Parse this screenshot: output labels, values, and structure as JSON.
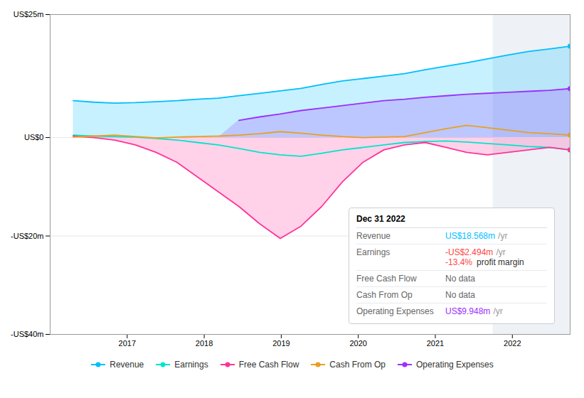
{
  "chart_data": {
    "type": "line",
    "x": [
      2016.3,
      2016.56875,
      2016.8375,
      2017.10625,
      2017.375,
      2017.64375,
      2017.9125,
      2018.18125,
      2018.45,
      2018.71875,
      2018.9875,
      2019.25625,
      2019.525,
      2019.79375,
      2020.0625,
      2020.33125,
      2020.6,
      2020.86875,
      2021.1375,
      2021.40625,
      2021.675,
      2021.94375,
      2022.2125,
      2022.48125,
      2022.75
    ],
    "xlim": [
      2016.0,
      2022.75
    ],
    "xticks": [
      2017,
      2018,
      2019,
      2020,
      2021,
      2022
    ],
    "ylim": [
      -40,
      25
    ],
    "yticks": [
      {
        "value": -40,
        "label": "-US$40m"
      },
      {
        "value": -20,
        "label": "-US$20m"
      },
      {
        "value": 0,
        "label": "US$0"
      },
      {
        "value": 25,
        "label": "US$25m"
      }
    ],
    "grid": "y",
    "legend": "bottom",
    "highlight": [
      2021.75,
      2022.75
    ],
    "series": [
      {
        "name": "Revenue",
        "type": "area",
        "color": "#00bfff",
        "marker": "circle",
        "values": [
          7.5,
          7.2,
          7.0,
          7.1,
          7.3,
          7.5,
          7.8,
          8.0,
          8.5,
          9.0,
          9.5,
          10.0,
          10.8,
          11.5,
          12.0,
          12.5,
          13.0,
          13.8,
          14.5,
          15.2,
          16.0,
          16.8,
          17.5,
          18.0,
          18.568
        ]
      },
      {
        "name": "Earnings",
        "type": "line",
        "color": "#00e5cc",
        "marker": "circle",
        "values": [
          0.5,
          0.3,
          0.2,
          0.1,
          -0.2,
          -0.5,
          -1.0,
          -1.5,
          -2.2,
          -3.0,
          -3.5,
          -3.8,
          -3.2,
          -2.5,
          -2.0,
          -1.5,
          -1.0,
          -0.8,
          -0.7,
          -0.9,
          -1.2,
          -1.5,
          -1.8,
          -2.0,
          -2.494
        ]
      },
      {
        "name": "Free Cash Flow",
        "type": "area",
        "color": "#ff3399",
        "marker": "circle",
        "values": [
          0.3,
          0.0,
          -0.5,
          -1.5,
          -3.0,
          -5.0,
          -8.0,
          -11.0,
          -14.0,
          -17.5,
          -20.5,
          -18.0,
          -14.0,
          -9.0,
          -5.0,
          -2.5,
          -1.5,
          -1.0,
          -2.0,
          -3.0,
          -3.5,
          -3.0,
          -2.5,
          -2.0,
          -2.5
        ]
      },
      {
        "name": "Cash From Op",
        "type": "line",
        "color": "#e8a020",
        "marker": "circle",
        "values": [
          0.1,
          0.3,
          0.5,
          0.2,
          -0.1,
          0.1,
          0.2,
          0.3,
          0.5,
          0.8,
          1.2,
          0.9,
          0.5,
          0.2,
          0.0,
          0.1,
          0.2,
          1.0,
          1.8,
          2.5,
          2.0,
          1.5,
          1.0,
          0.8,
          0.5
        ]
      },
      {
        "name": "Operating Expenses",
        "type": "area",
        "color": "#9b30ff",
        "marker": "circle",
        "values": [
          null,
          null,
          null,
          null,
          null,
          null,
          null,
          null,
          3.5,
          4.2,
          4.8,
          5.5,
          6.0,
          6.5,
          7.0,
          7.5,
          7.8,
          8.2,
          8.5,
          8.8,
          9.0,
          9.2,
          9.4,
          9.6,
          9.948
        ]
      }
    ],
    "annotations": {
      "title": "Dec 31 2022",
      "rows": [
        {
          "label": "Revenue",
          "value": "US$18.568m",
          "unit": "/yr",
          "color": "#00bfff"
        },
        {
          "label": "Earnings",
          "value": "-US$2.494m",
          "unit": "/yr",
          "color": "#ff4444",
          "extra": "-13.4%",
          "extra_label": "profit margin"
        },
        {
          "label": "Free Cash Flow",
          "value": "No data",
          "color": "#666666"
        },
        {
          "label": "Cash From Op",
          "value": "No data",
          "color": "#666666"
        },
        {
          "label": "Operating Expenses",
          "value": "US$9.948m",
          "unit": "/yr",
          "color": "#9b30ff"
        }
      ]
    }
  }
}
